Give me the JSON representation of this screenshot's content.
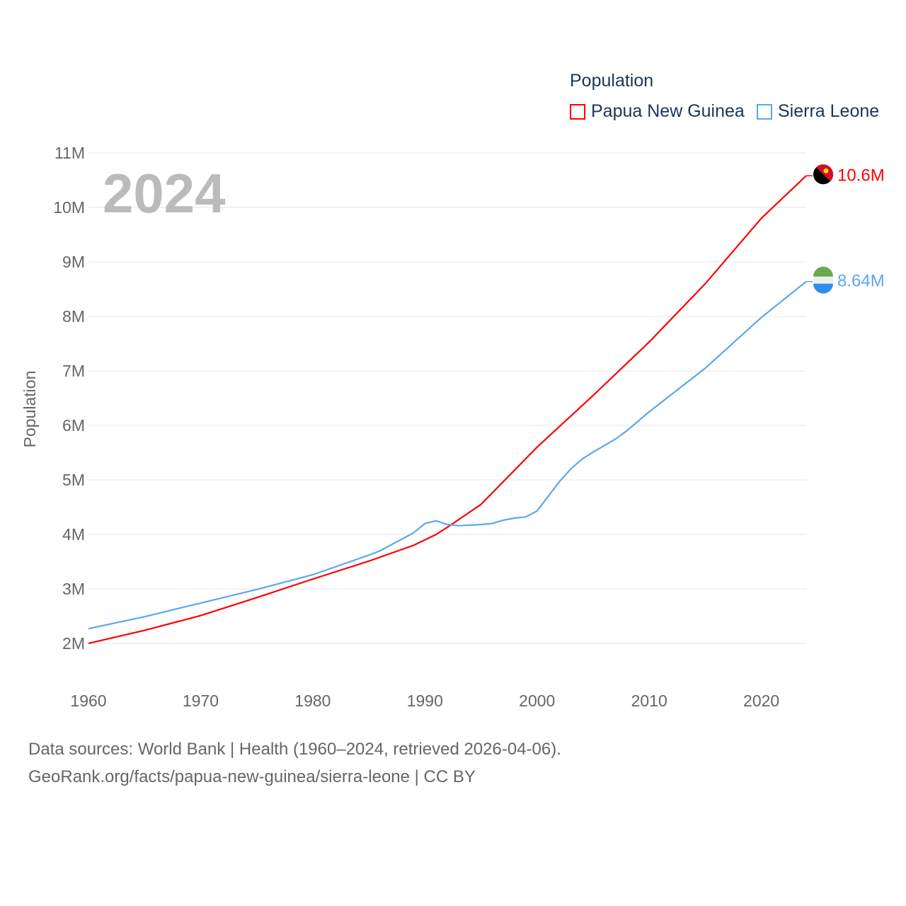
{
  "chart_data": {
    "type": "line",
    "title": "Population",
    "ylabel": "Population",
    "xlabel": "",
    "year_label": "2024",
    "xlim": [
      1960,
      2024
    ],
    "ylim": [
      2,
      11
    ],
    "x_ticks": [
      "1960",
      "1970",
      "1980",
      "1990",
      "2000",
      "2010",
      "2020"
    ],
    "y_ticks": [
      "2M",
      "3M",
      "4M",
      "5M",
      "6M",
      "7M",
      "8M",
      "9M",
      "10M",
      "11M"
    ],
    "legend_title": "Population",
    "legend_placement": "top-right",
    "series": [
      {
        "name": "Papua New Guinea",
        "color": "#ff0000",
        "end_label": "10.6M",
        "x": [
          1960,
          1965,
          1970,
          1975,
          1980,
          1985,
          1989,
          1990,
          1991,
          1992,
          1995,
          2000,
          2005,
          2010,
          2015,
          2020,
          2024
        ],
        "values": [
          2.0,
          2.24,
          2.51,
          2.84,
          3.18,
          3.51,
          3.8,
          3.9,
          4.0,
          4.13,
          4.55,
          5.6,
          6.55,
          7.53,
          8.6,
          9.8,
          10.58
        ]
      },
      {
        "name": "Sierra Leone",
        "color": "#5ba8ec",
        "end_label": "8.64M",
        "x": [
          1960,
          1965,
          1970,
          1975,
          1980,
          1985,
          1986,
          1989,
          1990,
          1991,
          1992,
          1993,
          1995,
          1996,
          1997,
          1998,
          1999,
          2000,
          2002,
          2003,
          2004,
          2005,
          2007,
          2008,
          2010,
          2015,
          2020,
          2024
        ],
        "values": [
          2.27,
          2.49,
          2.74,
          2.99,
          3.26,
          3.62,
          3.7,
          4.03,
          4.2,
          4.25,
          4.18,
          4.16,
          4.18,
          4.2,
          4.26,
          4.3,
          4.32,
          4.43,
          4.97,
          5.2,
          5.38,
          5.51,
          5.75,
          5.9,
          6.25,
          7.05,
          7.98,
          8.64
        ]
      }
    ]
  },
  "footer": {
    "line1": "Data sources: World Bank | Health (1960–2024, retrieved 2026-04-06).",
    "line2": "GeoRank.org/facts/papua-new-guinea/sierra-leone | CC BY"
  }
}
